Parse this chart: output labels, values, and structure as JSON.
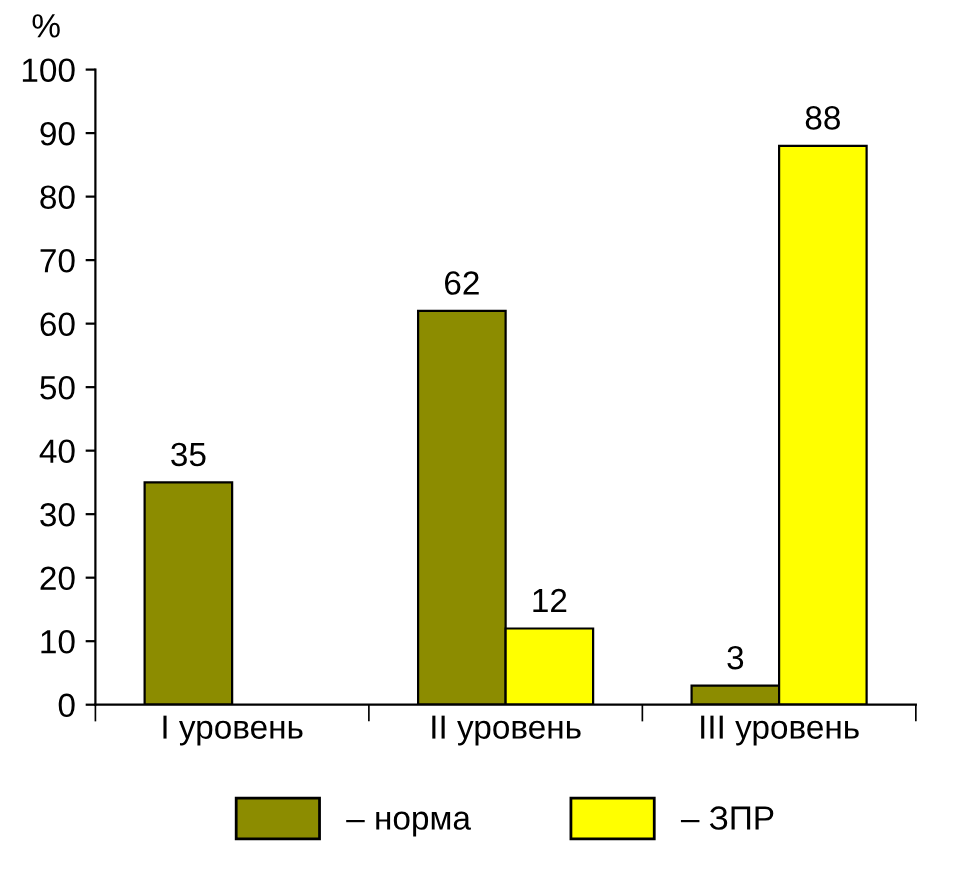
{
  "chart_data": {
    "type": "bar",
    "ylabel": "%",
    "categories": [
      "I уровень",
      "II уровень",
      "III уровень"
    ],
    "series": [
      {
        "name": "– норма",
        "color": "#8c8c00",
        "values": [
          35,
          62,
          3
        ]
      },
      {
        "name": "– ЗПР",
        "color": "#ffff00",
        "values": [
          null,
          12,
          88
        ]
      }
    ],
    "ylim": [
      0,
      100
    ],
    "yticks": [
      0,
      10,
      20,
      30,
      40,
      50,
      60,
      70,
      80,
      90,
      100
    ],
    "grid": false,
    "legend": "bottom",
    "data_labels": true
  }
}
